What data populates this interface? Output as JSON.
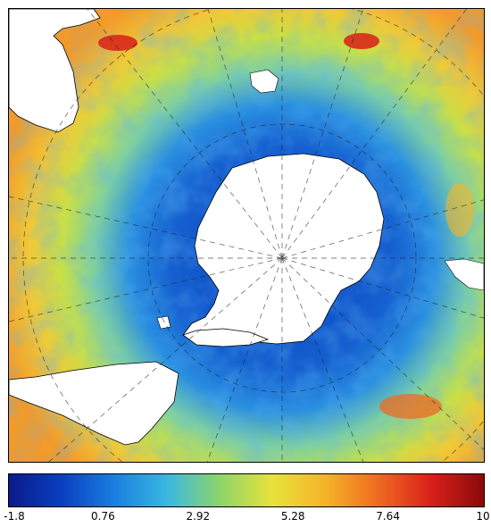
{
  "map": {
    "projection": "south-polar-stereographic",
    "land_color": "#ffffff",
    "coastline_color": "#000000",
    "graticule_style": "dashed"
  },
  "colorbar": {
    "ticks": [
      "-1.8",
      "0.76",
      "2.92",
      "5.28",
      "7.64",
      "10"
    ],
    "min": -1.8,
    "max": 10,
    "colors": [
      "#0b1b8a",
      "#0a3fc0",
      "#1a7fe0",
      "#39b8e0",
      "#8ed46a",
      "#e8e23a",
      "#f5b32a",
      "#ef6a20",
      "#d8201a",
      "#8a0a0a"
    ]
  }
}
